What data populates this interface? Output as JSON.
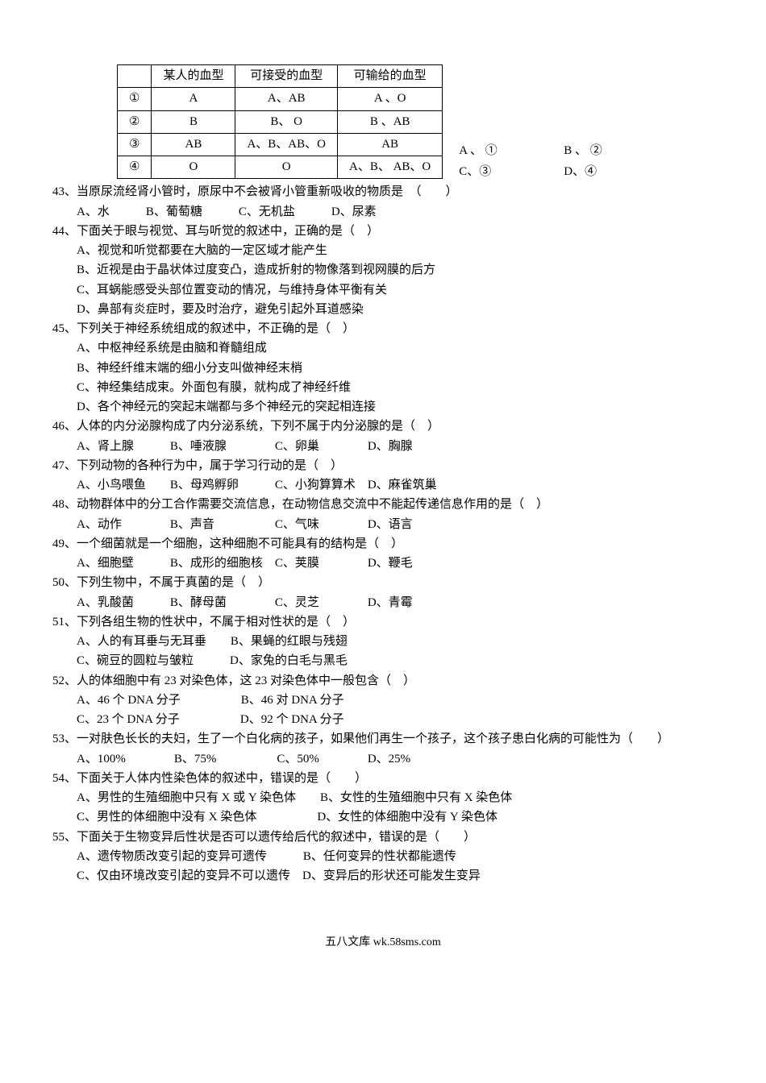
{
  "table": {
    "headers": [
      "",
      "某人的血型",
      "可接受的血型",
      "可输给的血型"
    ],
    "rows": [
      [
        "①",
        "A",
        "A、AB",
        "A 、O"
      ],
      [
        "②",
        "B",
        "B、 O",
        "B 、AB"
      ],
      [
        "③",
        "AB",
        "A、B、AB、O",
        "AB"
      ],
      [
        "④",
        "O",
        "O",
        "A、B、 AB、O"
      ]
    ]
  },
  "rightOptions": {
    "a": "A 、 ①",
    "b": "B 、 ②",
    "c": "C、③",
    "d": "D、④"
  },
  "questions": {
    "q43": {
      "text": "43、当原尿流经肾小管时，原尿中不会被肾小管重新吸收的物质是　（　　）",
      "options": "A、水　　　B、葡萄糖　　　C、无机盐　　　D、尿素"
    },
    "q44": {
      "text": "44、下面关于眼与视觉、耳与听觉的叙述中，正确的是（　）",
      "a": "A、视觉和听觉都要在大脑的一定区域才能产生",
      "b": "B、近视是由于晶状体过度变凸，造成折射的物像落到视网膜的后方",
      "c": "C、耳蜗能感受头部位置变动的情况，与维持身体平衡有关",
      "d": "D、鼻部有炎症时，要及时治疗，避免引起外耳道感染"
    },
    "q45": {
      "text": "45、下列关于神经系统组成的叙述中，不正确的是（　）",
      "a": "A、中枢神经系统是由脑和脊髓组成",
      "b": "B、神经纤维末端的细小分支叫做神经末梢",
      "c": "C、神经集结成束。外面包有膜，就构成了神经纤维",
      "d": "D、各个神经元的突起末端都与多个神经元的突起相连接"
    },
    "q46": {
      "text": "46、人体的内分泌腺构成了内分泌系统，下列不属于内分泌腺的是（　）",
      "options": "A、肾上腺　　　B、唾液腺　　　　C、卵巢　　　　D、胸腺"
    },
    "q47": {
      "text": "47、下列动物的各种行为中，属于学习行动的是（　）",
      "options": "A、小鸟喂鱼　　B、母鸡孵卵　　　C、小狗算算术　D、麻雀筑巢"
    },
    "q48": {
      "text": "48、动物群体中的分工合作需要交流信息，在动物信息交流中不能起传递信息作用的是（　）",
      "options": "A、动作　　　　B、声音　　　　　C、气味　　　　D、语言"
    },
    "q49": {
      "text": "49、一个细菌就是一个细胞，这种细胞不可能具有的结构是（　）",
      "options": "A、细胞壁　　　B、成形的细胞核　C、荚膜　　　　D、鞭毛"
    },
    "q50": {
      "text": "50、下列生物中，不属于真菌的是（　）",
      "options": "A、乳酸菌　　　B、酵母菌　　　　C、灵芝　　　　D、青霉"
    },
    "q51": {
      "text": "51、下列各组生物的性状中，不属于相对性状的是（　）",
      "a": "A、人的有耳垂与无耳垂　　B、果蝇的红眼与残翅",
      "b": "C、碗豆的圆粒与皱粒　　　D、家兔的白毛与黑毛"
    },
    "q52": {
      "text": "52、人的体细胞中有 23 对染色体，这 23 对染色体中一般包含（　）",
      "a": "A、46 个 DNA 分子　　　　　B、46 对 DNA 分子",
      "b": "C、23 个 DNA 分子　　　　　D、92 个 DNA 分子"
    },
    "q53": {
      "text": "53、一对肤色长长的夫妇，生了一个白化病的孩子，如果他们再生一个孩子，这个孩子患白化病的可能性为（　　）",
      "options": "A、100%　　　　B、75%　　　　　C、50%　　　　D、25%"
    },
    "q54": {
      "text": "54、下面关于人体内性染色体的叙述中，错误的是（　　）",
      "a": "A、男性的生殖细胞中只有 X 或 Y 染色体　　B、女性的生殖细胞中只有 X 染色体",
      "b": "C、男性的体细胞中没有 X 染色体　　　　　D、女性的体细胞中没有 Y 染色体"
    },
    "q55": {
      "text": "55、下面关于生物变异后性状是否可以遗传给后代的叙述中，错误的是（　　）",
      "a": "A、遗传物质改变引起的变异可遗传　　　B、任何变异的性状都能遗传",
      "b": "C、仅由环境改变引起的变异不可以遗传　D、变异后的形状还可能发生变异"
    }
  },
  "footer": "五八文库 wk.58sms.com"
}
